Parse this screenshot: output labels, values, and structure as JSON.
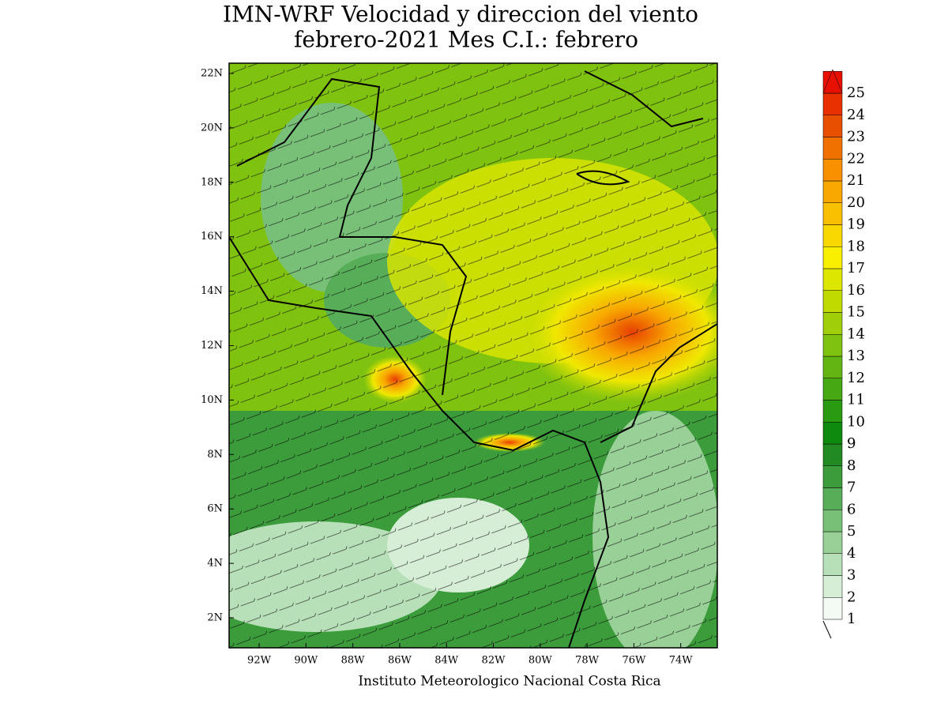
{
  "title": [
    "IMN-WRF Velocidad y direccion del viento",
    "febrero-2021 Mes C.I.: febrero"
  ],
  "map": {
    "lat_labels": [
      "22N",
      "20N",
      "18N",
      "16N",
      "14N",
      "12N",
      "10N",
      "8N",
      "6N",
      "4N",
      "2N"
    ],
    "lon_labels": [
      "92W",
      "90W",
      "88W",
      "86W",
      "84W",
      "82W",
      "80W",
      "78W",
      "76W",
      "74W"
    ]
  },
  "colorbar": {
    "levels": [
      1,
      2,
      3,
      4,
      5,
      6,
      7,
      8,
      9,
      10,
      11,
      12,
      13,
      14,
      15,
      16,
      17,
      18,
      19,
      20,
      21,
      22,
      23,
      24,
      25
    ],
    "colors": [
      "#f4fbf4",
      "#d6eed6",
      "#b8e0b8",
      "#98d098",
      "#78c078",
      "#58ae58",
      "#3c9c3c",
      "#228a22",
      "#0e8a0e",
      "#2a9a12",
      "#46a812",
      "#62b512",
      "#80c210",
      "#a0ce08",
      "#c0da00",
      "#dde600",
      "#f8f000",
      "#f8d800",
      "#f8c000",
      "#f8a800",
      "#f89000",
      "#f07000",
      "#e85000",
      "#e83000",
      "#e81000"
    ]
  },
  "footer": "Instituto Meteorologico Nacional Costa Rica"
}
